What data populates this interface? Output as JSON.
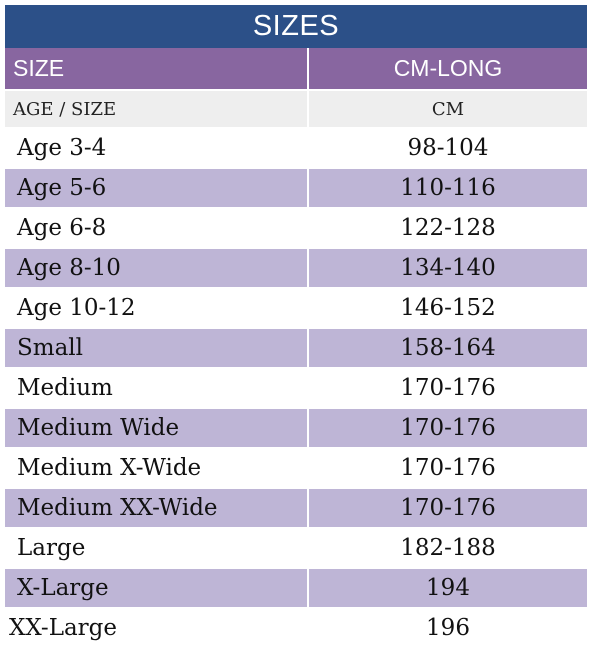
{
  "table": {
    "title": "SIZES",
    "header": [
      "SIZE",
      "CM-LONG"
    ],
    "subheader": [
      "AGE / SIZE",
      "CM"
    ],
    "rows": [
      [
        "Age 3-4",
        "98-104"
      ],
      [
        "Age 5-6",
        "110-116"
      ],
      [
        "Age 6-8",
        "122-128"
      ],
      [
        "Age 8-10",
        "134-140"
      ],
      [
        "Age 10-12",
        "146-152"
      ],
      [
        "Small",
        "158-164"
      ],
      [
        "Medium",
        "170-176"
      ],
      [
        "Medium Wide",
        "170-176"
      ],
      [
        "Medium X-Wide",
        "170-176"
      ],
      [
        "Medium XX-Wide",
        "170-176"
      ],
      [
        "Large",
        "182-188"
      ],
      [
        "X-Large",
        "194"
      ],
      [
        "XX-Large",
        "196"
      ]
    ]
  },
  "colors": {
    "title_bg": "#2c5088",
    "header_bg": "#8866a0",
    "subheader_bg": "#eeeeee",
    "stripe_bg": "#beb5d6"
  }
}
